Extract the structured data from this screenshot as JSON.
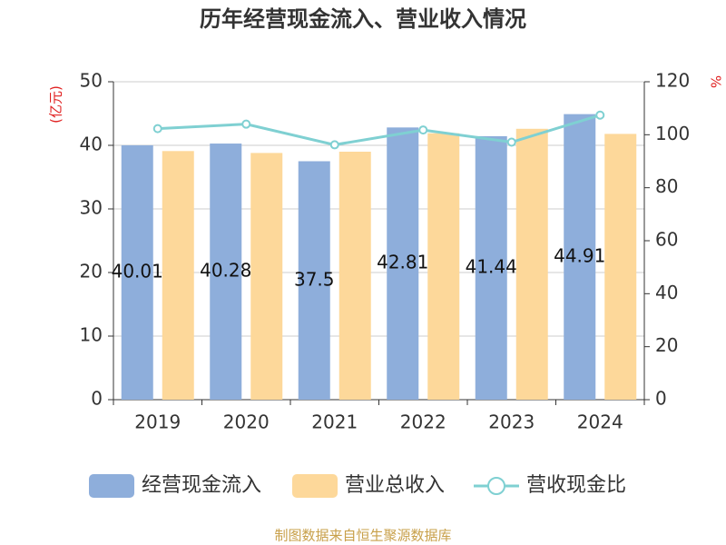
{
  "chart_data": {
    "type": "bar-line",
    "title": "历年经营现金流入、营业收入情况",
    "y_label": "(亿元)",
    "y2_label": "%",
    "categories": [
      "2019",
      "2020",
      "2021",
      "2022",
      "2023",
      "2024"
    ],
    "series": [
      {
        "name": "经营现金流入",
        "color": "#8eaedb",
        "type": "bar",
        "values": [
          40.01,
          40.28,
          37.5,
          42.81,
          41.44,
          44.91
        ]
      },
      {
        "name": "营业总收入",
        "color": "#fdd89a",
        "type": "bar",
        "values": [
          39.1,
          38.8,
          39.0,
          41.9,
          42.6,
          41.8
        ]
      },
      {
        "name": "营收现金比",
        "color": "#7fd0d2",
        "type": "line",
        "axis": "y2",
        "values": [
          102.3,
          104.0,
          96.2,
          101.8,
          97.2,
          107.4
        ]
      }
    ],
    "ylim": [
      0,
      50
    ],
    "yticks": [
      0,
      10,
      20,
      30,
      40,
      50
    ],
    "y2lim": [
      0,
      120
    ],
    "y2ticks": [
      0,
      20,
      40,
      60,
      80,
      100,
      120
    ],
    "grid": true,
    "source": "制图数据来自恒生聚源数据库"
  }
}
